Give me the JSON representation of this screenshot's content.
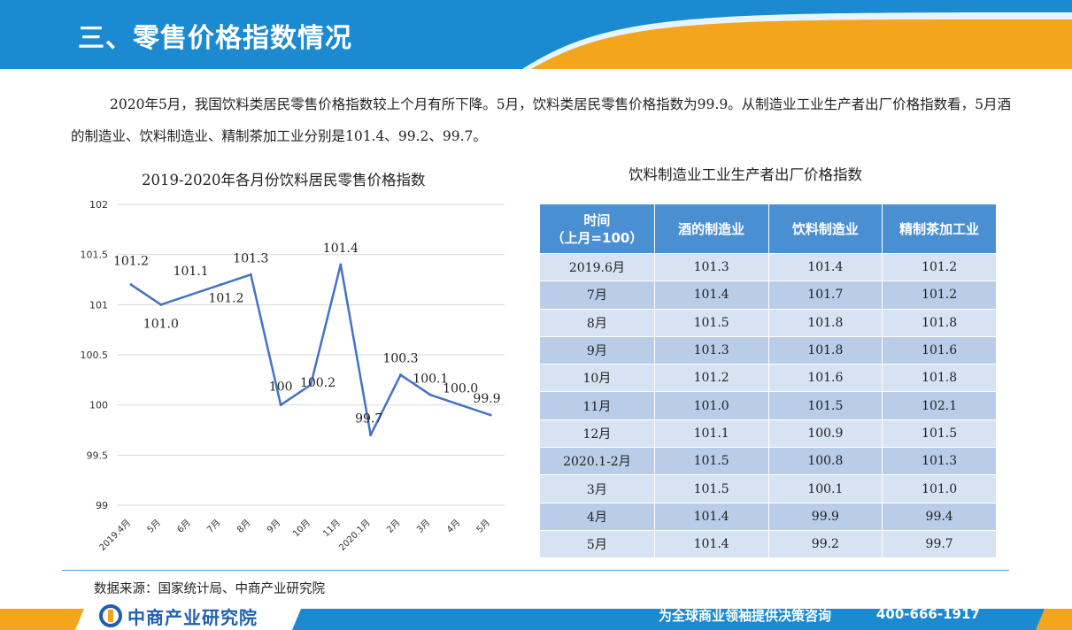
{
  "header": {
    "title": "三、零售价格指数情况",
    "colors": {
      "blue": "#1b8ad1",
      "orange": "#f5a51c"
    }
  },
  "intro": {
    "text": "2020年5月，我国饮料类居民零售价格指数较上个月有所下降。5月，饮料类居民零售价格指数为99.9。从制造业工业生产者出厂价格指数看，5月酒的制造业、饮料制造业、精制茶加工业分别是101.4、99.2、99.7。"
  },
  "chart_data": {
    "type": "line",
    "title": "2019-2020年各月份饮料居民零售价格指数",
    "categories": [
      "2019.4月",
      "5月",
      "6月",
      "7月",
      "8月",
      "9月",
      "10月",
      "11月",
      "2020.1月",
      "2月",
      "3月",
      "4月",
      "5月"
    ],
    "series": [
      {
        "values": [
          101.2,
          101.0,
          101.1,
          101.2,
          101.3,
          100.0,
          100.2,
          101.4,
          99.7,
          100.3,
          100.1,
          100.0,
          99.9
        ],
        "labels": [
          "101.2",
          "101.0",
          "101.1",
          "101.2",
          "101.3",
          "100",
          "100.2",
          "101.4",
          "99.7",
          "100.3",
          "100.1",
          "100.0",
          "99.9"
        ],
        "color": "#4472c4"
      }
    ],
    "yticks": [
      "102",
      "101.5",
      "101",
      "100.5",
      "100",
      "99.5",
      "99"
    ],
    "ylim": [
      99,
      102
    ],
    "grid": true,
    "legend": "none"
  },
  "table": {
    "title": "饮料制造业工业生产者出厂价格指数",
    "headers": [
      "时间\n（上月=100）",
      "酒的制造业",
      "饮料制造业",
      "精制茶加工业"
    ],
    "rows": [
      [
        "2019.6月",
        "101.3",
        "101.4",
        "101.2"
      ],
      [
        "7月",
        "101.4",
        "101.7",
        "101.2"
      ],
      [
        "8月",
        "101.5",
        "101.8",
        "101.8"
      ],
      [
        "9月",
        "101.3",
        "101.8",
        "101.6"
      ],
      [
        "10月",
        "101.2",
        "101.6",
        "101.8"
      ],
      [
        "11月",
        "101.0",
        "101.5",
        "102.1"
      ],
      [
        "12月",
        "101.1",
        "100.9",
        "101.5"
      ],
      [
        "2020.1-2月",
        "101.5",
        "100.8",
        "101.3"
      ],
      [
        "3月",
        "101.5",
        "100.1",
        "101.0"
      ],
      [
        "4月",
        "101.4",
        "99.9",
        "99.4"
      ],
      [
        "5月",
        "101.4",
        "99.2",
        "99.7"
      ]
    ],
    "header_color": "#4b8fd3"
  },
  "source": {
    "text": "数据来源：国家统计局、中商产业研究院"
  },
  "footer": {
    "logo_text": "中商产业研究院",
    "logo_icon": "company-logo-icon",
    "slogan": "为全球商业领袖提供决策咨询",
    "phone": "400-666-1917"
  }
}
